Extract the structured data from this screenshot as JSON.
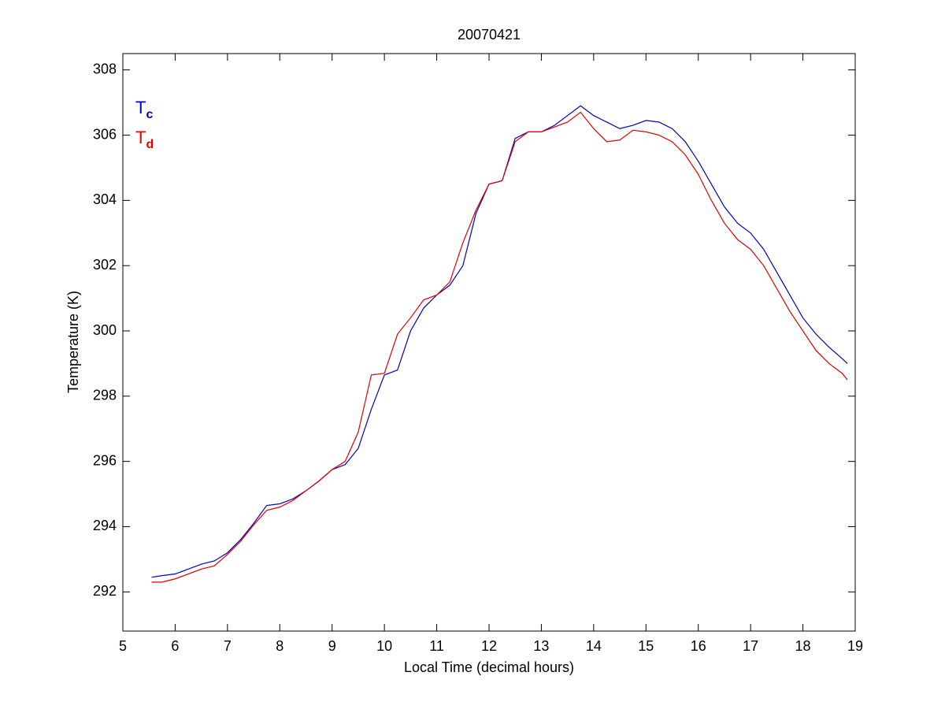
{
  "chart_data": {
    "type": "line",
    "title": "20070421",
    "xlabel": "Local Time (decimal hours)",
    "ylabel": "Temperature (K)",
    "xlim": [
      5,
      19
    ],
    "xticks": [
      5,
      6,
      7,
      8,
      9,
      10,
      11,
      12,
      13,
      14,
      15,
      16,
      17,
      18,
      19
    ],
    "ylim": [
      290.8,
      308.5
    ],
    "yticks": [
      292,
      294,
      296,
      298,
      300,
      302,
      304,
      306,
      308
    ],
    "grid": false,
    "legend": "upper left",
    "x": [
      5.55,
      5.75,
      6.0,
      6.25,
      6.5,
      6.75,
      7.0,
      7.25,
      7.5,
      7.75,
      8.0,
      8.25,
      8.5,
      8.75,
      9.0,
      9.25,
      9.5,
      9.75,
      10.0,
      10.25,
      10.5,
      10.75,
      11.0,
      11.25,
      11.5,
      11.75,
      12.0,
      12.25,
      12.5,
      12.75,
      13.0,
      13.25,
      13.5,
      13.75,
      14.0,
      14.25,
      14.5,
      14.75,
      15.0,
      15.25,
      15.5,
      15.75,
      16.0,
      16.25,
      16.5,
      16.75,
      17.0,
      17.25,
      17.5,
      17.75,
      18.0,
      18.25,
      18.5,
      18.75,
      18.85
    ],
    "series": [
      {
        "name": "Tc",
        "color": "#0000c0",
        "values": [
          292.45,
          292.5,
          292.55,
          292.7,
          292.85,
          292.95,
          293.2,
          293.6,
          294.1,
          294.65,
          294.7,
          294.85,
          295.1,
          295.4,
          295.75,
          295.9,
          296.4,
          297.6,
          298.65,
          298.8,
          300.0,
          300.7,
          301.1,
          301.4,
          302.0,
          303.6,
          304.5,
          304.6,
          305.9,
          306.1,
          306.1,
          306.3,
          306.6,
          306.9,
          306.6,
          306.4,
          306.2,
          306.3,
          306.45,
          306.4,
          306.2,
          305.8,
          305.2,
          304.5,
          303.8,
          303.3,
          303.0,
          302.5,
          301.8,
          301.1,
          300.4,
          299.9,
          299.5,
          299.15,
          299.0
        ]
      },
      {
        "name": "Td",
        "color": "#e00000",
        "values": [
          292.3,
          292.3,
          292.4,
          292.55,
          292.7,
          292.8,
          293.15,
          293.55,
          294.05,
          294.5,
          294.6,
          294.8,
          295.1,
          295.4,
          295.75,
          296.0,
          296.9,
          298.65,
          298.7,
          299.9,
          300.4,
          300.95,
          301.1,
          301.5,
          302.7,
          303.7,
          304.5,
          304.6,
          305.8,
          306.1,
          306.1,
          306.25,
          306.4,
          306.7,
          306.2,
          305.8,
          305.85,
          306.15,
          306.1,
          306.0,
          305.8,
          305.4,
          304.8,
          304.0,
          303.3,
          302.8,
          302.5,
          302.0,
          301.3,
          300.6,
          300.0,
          299.4,
          299.0,
          298.7,
          298.5
        ]
      }
    ]
  }
}
